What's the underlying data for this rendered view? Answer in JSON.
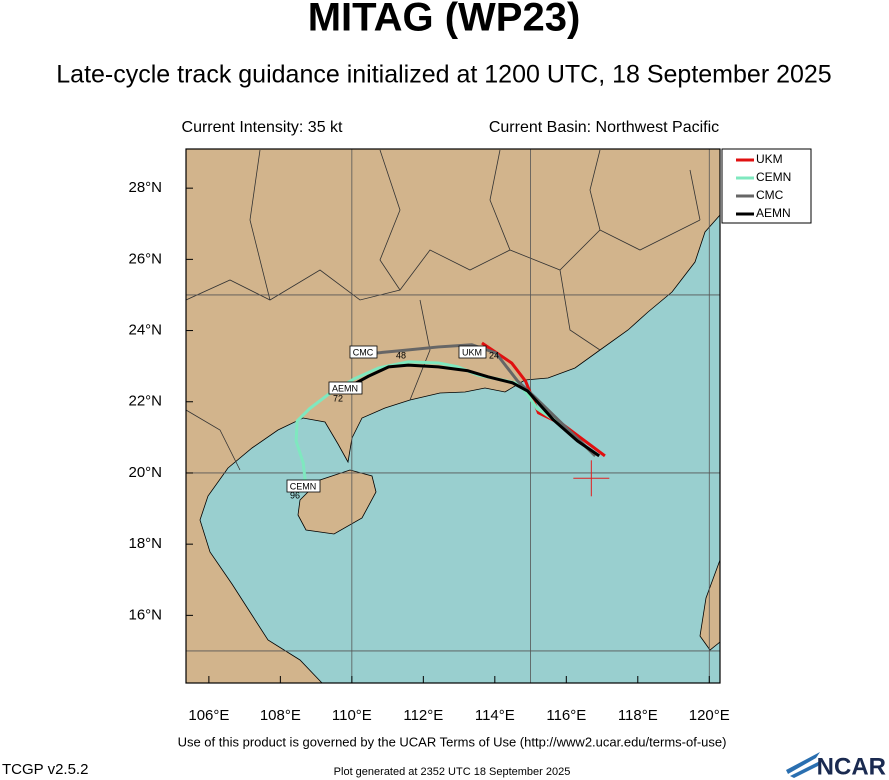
{
  "chart_data": {
    "type": "track",
    "title": "MITAG (WP23)",
    "subtitle": "Late-cycle track guidance initialized at 1200 UTC, 18 September 2025",
    "current_intensity": "Current Intensity: 35 kt",
    "current_basin": "Current Basin: Northwest Pacific",
    "xlim": [
      105.36,
      120.3
    ],
    "ylim": [
      14.1,
      29.1
    ],
    "xticks": [
      {
        "value": 106,
        "label": "106°E"
      },
      {
        "value": 108,
        "label": "108°E"
      },
      {
        "value": 110,
        "label": "110°E"
      },
      {
        "value": 112,
        "label": "112°E"
      },
      {
        "value": 114,
        "label": "114°E"
      },
      {
        "value": 116,
        "label": "116°E"
      },
      {
        "value": 118,
        "label": "118°E"
      },
      {
        "value": 120,
        "label": "120°E"
      }
    ],
    "yticks": [
      {
        "value": 16,
        "label": "16°N"
      },
      {
        "value": 18,
        "label": "18°N"
      },
      {
        "value": 20,
        "label": "20°N"
      },
      {
        "value": 22,
        "label": "22°N"
      },
      {
        "value": 24,
        "label": "24°N"
      },
      {
        "value": 26,
        "label": "26°N"
      },
      {
        "value": 28,
        "label": "28°N"
      }
    ],
    "grid_lon": [
      110,
      115,
      120
    ],
    "grid_lat": [
      15,
      20,
      25
    ],
    "current_center": {
      "lon": 116.7,
      "lat": 19.85,
      "color": "#e02020"
    },
    "series": [
      {
        "name": "UKM",
        "color": "#e01010",
        "lon": [
          117.08,
          115.92,
          115.22,
          114.86,
          114.47,
          113.64
        ],
        "lat": [
          20.48,
          21.35,
          21.69,
          22.58,
          23.09,
          23.65
        ]
      },
      {
        "name": "CEMN",
        "color": "#7fe8bf",
        "lon": [
          116.81,
          115.97,
          115.19,
          114.92,
          114.69,
          114.08,
          113.53,
          112.97,
          112.42,
          111.58,
          110.75,
          110.06,
          109.36,
          108.81,
          108.47,
          108.44,
          108.64,
          108.69,
          108.47
        ],
        "lat": [
          20.48,
          21.29,
          21.8,
          22.19,
          22.5,
          22.64,
          22.75,
          22.98,
          23.09,
          23.12,
          22.95,
          22.64,
          22.22,
          21.8,
          21.46,
          20.9,
          20.28,
          19.83,
          19.44
        ]
      },
      {
        "name": "CMC",
        "color": "#666666",
        "lon": [
          116.81,
          115.92,
          115.14,
          114.64,
          114.03,
          113.36,
          112.42,
          111.31,
          110.69
        ],
        "lat": [
          20.48,
          21.35,
          22.11,
          22.58,
          23.37,
          23.6,
          23.54,
          23.43,
          23.37
        ]
      },
      {
        "name": "AEMN",
        "color": "#000000",
        "lon": [
          116.92,
          116.31,
          115.64,
          114.92,
          114.5,
          113.81,
          113.25,
          112.42,
          111.58,
          111.03,
          110.47,
          109.92,
          109.78
        ],
        "lat": [
          20.48,
          20.9,
          21.49,
          22.3,
          22.53,
          22.7,
          22.87,
          22.98,
          23.03,
          22.98,
          22.72,
          22.42,
          22.3
        ]
      }
    ],
    "track_labels": [
      {
        "model": "CMC",
        "hour": 48
      },
      {
        "model": "UKM",
        "hour": 24
      },
      {
        "model": "AEMN",
        "hour": 72
      },
      {
        "model": "CEMN",
        "hour": 96
      }
    ],
    "terms": "Use of this product is governed by the UCAR Terms of Use (http://www2.ucar.edu/terms-of-use)",
    "version": "TCGP v2.5.2",
    "generated": "Plot generated at 2352 UTC   18 September 2025",
    "logo": "NCAR"
  }
}
